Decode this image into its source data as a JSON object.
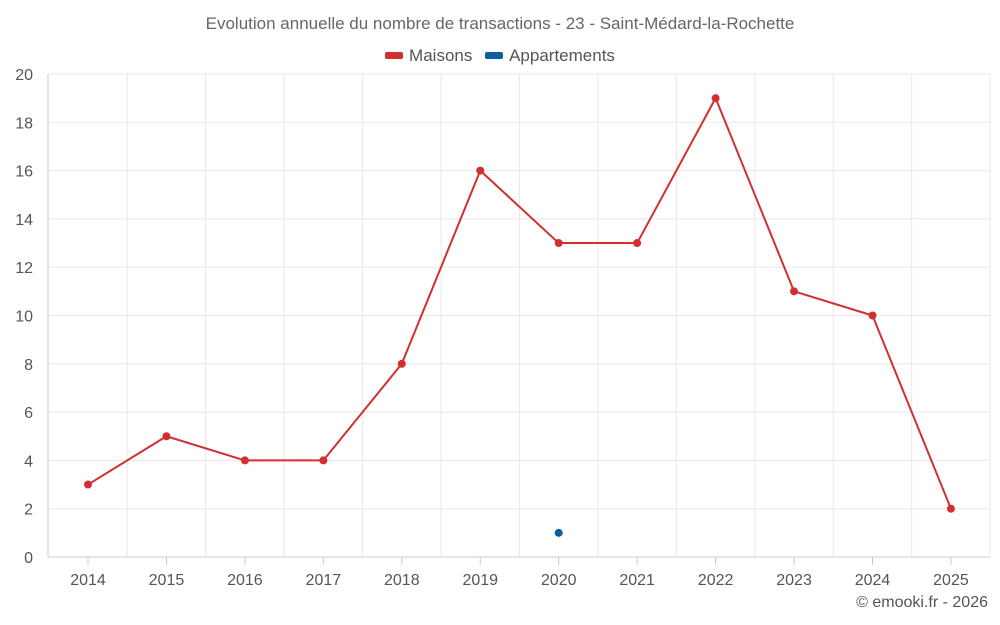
{
  "colors": {
    "maisons": "#d32f2f",
    "appartements": "#0a5f9e",
    "grid": "#e8e8e8",
    "axis": "#cccccc",
    "text": "#555555"
  },
  "chart_data": {
    "type": "line",
    "title": "Evolution annuelle du nombre de transactions - 23 - Saint-Médard-la-Rochette",
    "categories": [
      "2014",
      "2015",
      "2016",
      "2017",
      "2018",
      "2019",
      "2020",
      "2021",
      "2022",
      "2023",
      "2024",
      "2025"
    ],
    "series": [
      {
        "name": "Maisons",
        "color": "#d32f2f",
        "values": [
          3,
          5,
          4,
          4,
          8,
          16,
          13,
          13,
          19,
          11,
          10,
          2
        ]
      },
      {
        "name": "Appartements",
        "color": "#0a5f9e",
        "values": [
          null,
          null,
          null,
          null,
          null,
          null,
          1,
          null,
          null,
          null,
          null,
          null
        ]
      }
    ],
    "ylim": [
      0,
      20
    ],
    "yticks": [
      "0",
      "2",
      "4",
      "6",
      "8",
      "10",
      "12",
      "14",
      "16",
      "18",
      "20"
    ],
    "grid": true,
    "legend": "top-center"
  },
  "footer": {
    "copyright": "© emooki.fr - 2026"
  }
}
